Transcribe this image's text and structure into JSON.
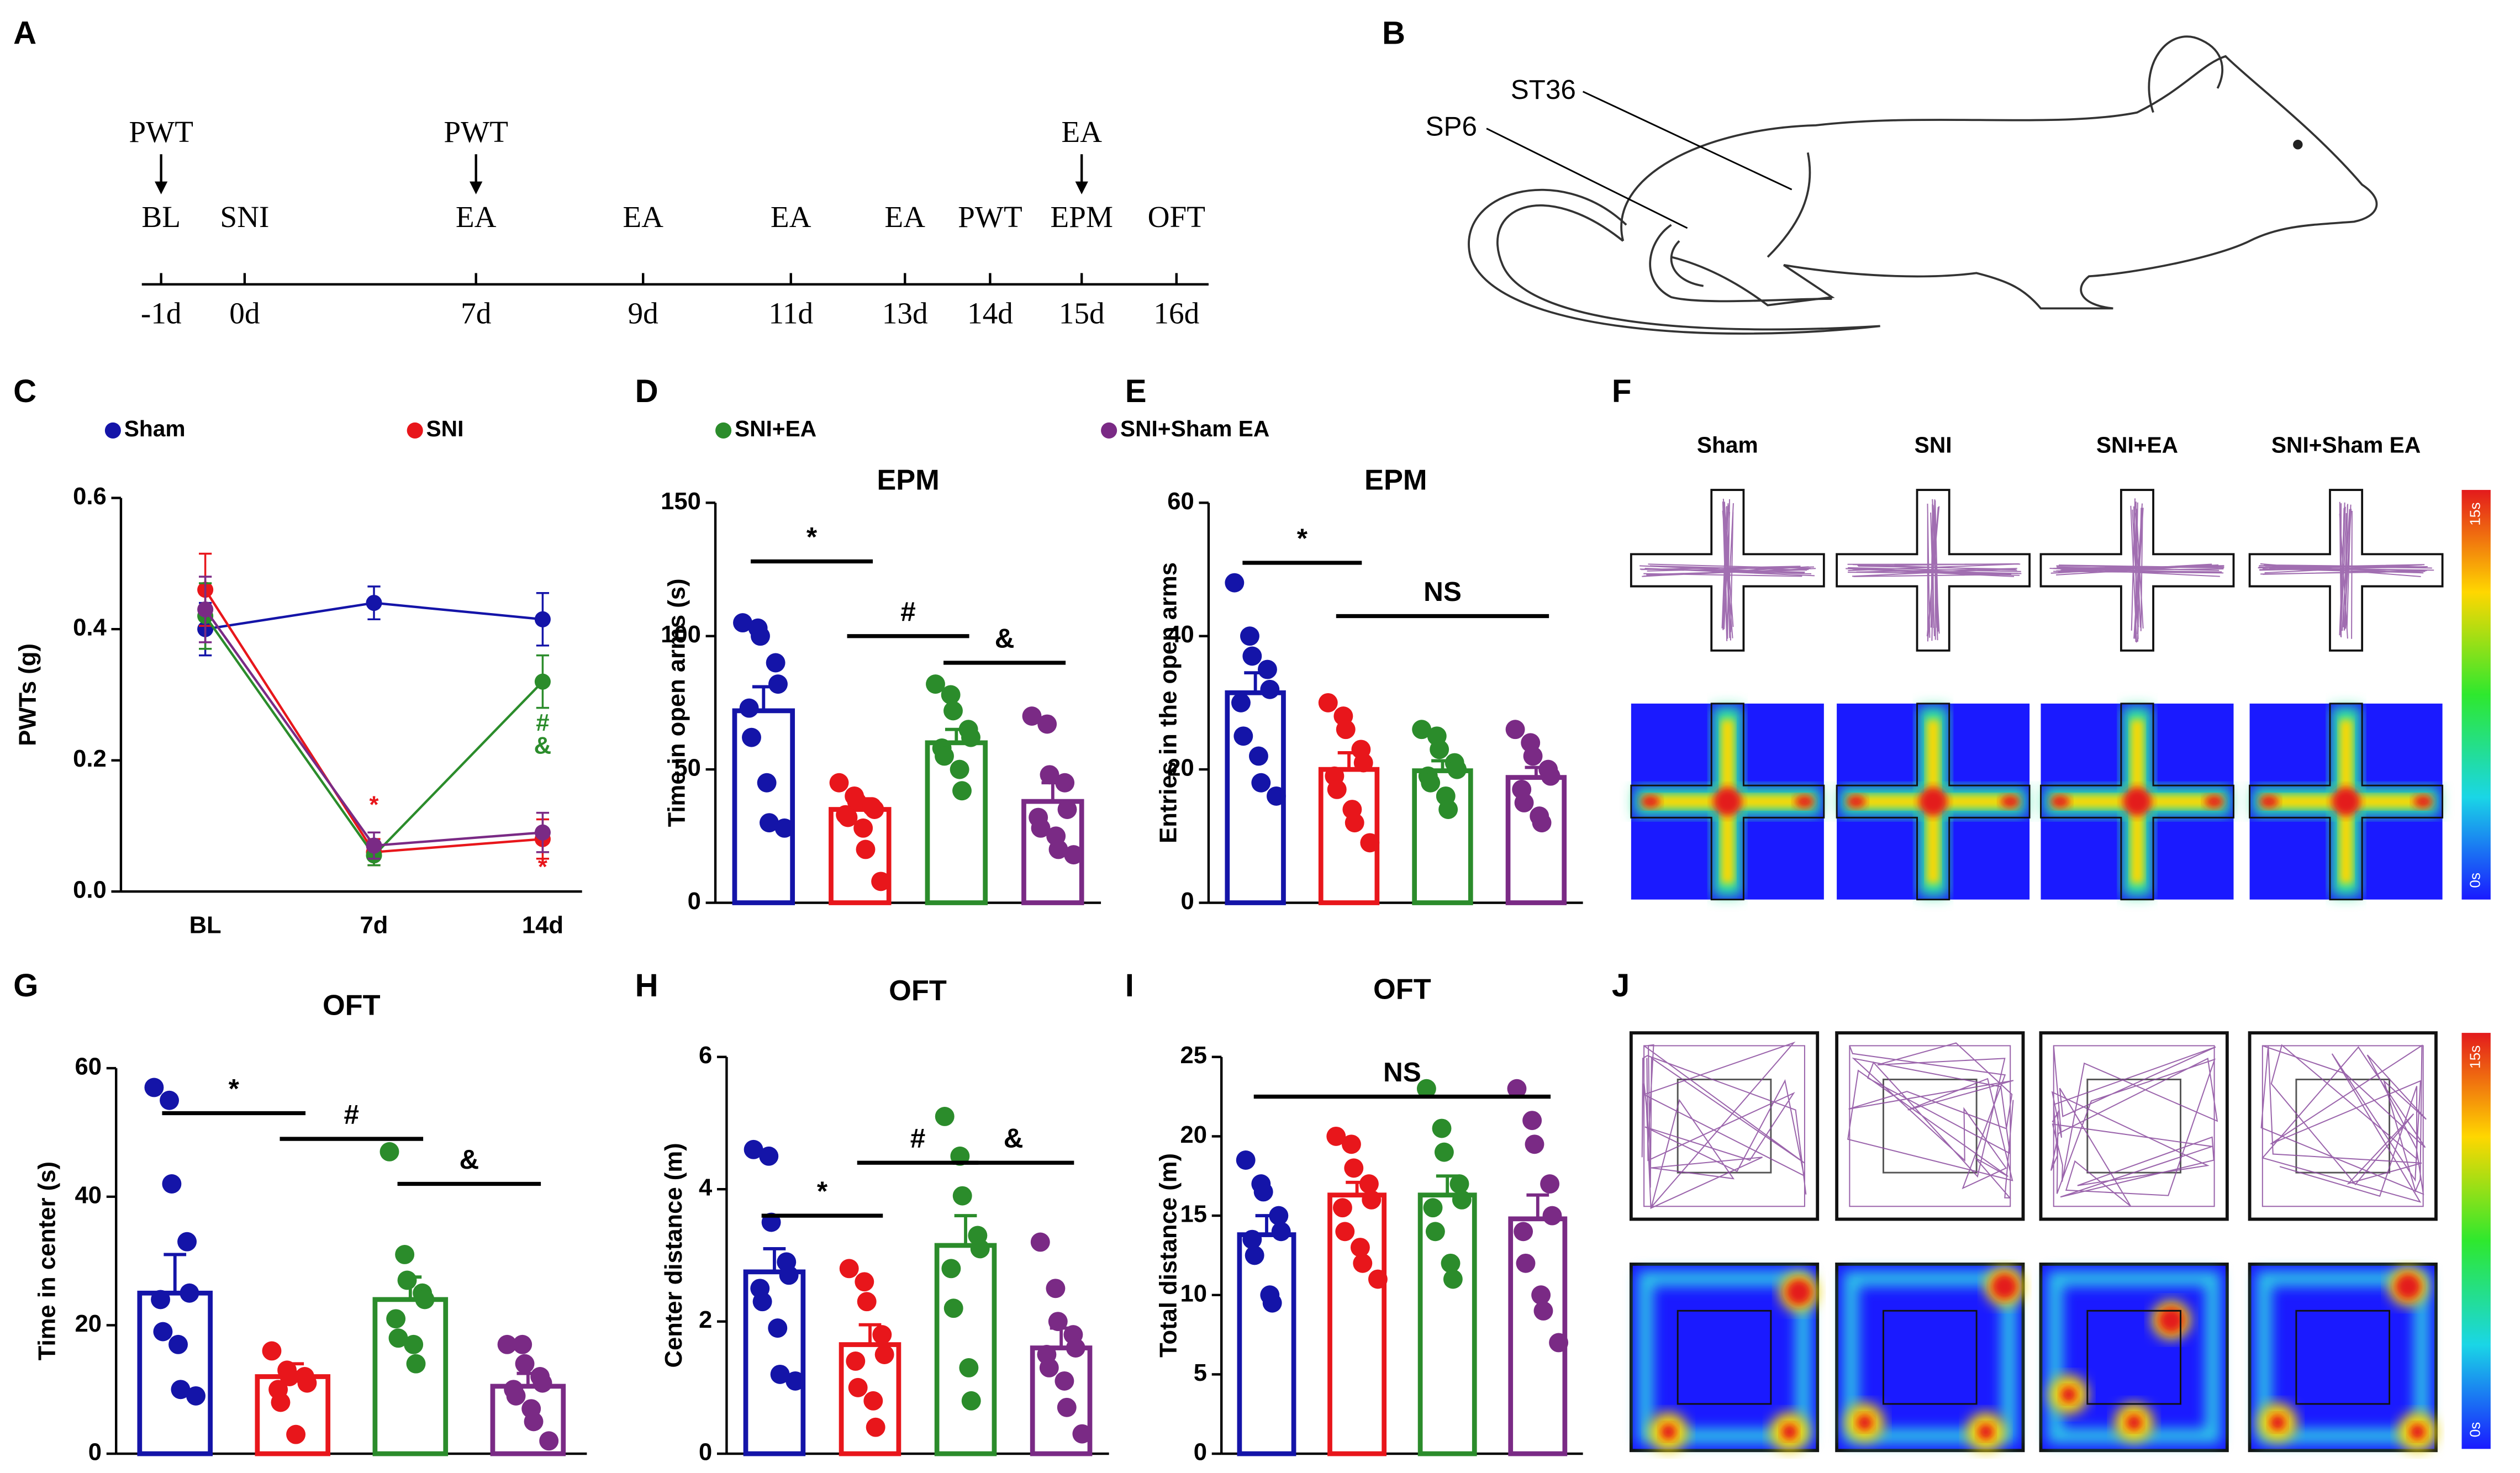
{
  "panel_labels": [
    "A",
    "B",
    "C",
    "D",
    "E",
    "F",
    "G",
    "H",
    "I",
    "J"
  ],
  "timeline": {
    "events": [
      {
        "top": "PWT",
        "label": "BL",
        "day": "-1d"
      },
      {
        "label": "SNI",
        "day": "0d"
      },
      {
        "top": "PWT",
        "label": "EA",
        "day": "7d"
      },
      {
        "label": "EA",
        "day": "9d"
      },
      {
        "label": "EA",
        "day": "11d"
      },
      {
        "label": "EA",
        "day": "13d"
      },
      {
        "label": "PWT",
        "day": "14d"
      },
      {
        "top": "EA",
        "label": "EPM",
        "day": "15d"
      },
      {
        "label": "OFT",
        "day": "16d"
      }
    ]
  },
  "mouse_labels": [
    "ST36",
    "SP6"
  ],
  "tracking_f": {
    "groups": [
      "Sham",
      "SNI",
      "SNI+EA",
      "SNI+Sham EA"
    ],
    "colorbar": [
      "15s",
      "0s"
    ]
  },
  "tracking_j": {
    "colorbar": [
      "15s",
      "0s"
    ]
  },
  "chart_data": [
    {
      "type": "line",
      "y_label": "PWTs (g)",
      "categories": [
        "BL",
        "7d",
        "14d"
      ],
      "ylim": [
        0,
        0.6
      ],
      "yticks": [
        {
          "value": 0,
          "label": "0.0"
        },
        0.2,
        0.4,
        0.6
      ],
      "series": [
        {
          "name": "Sham",
          "color": "#1414a8",
          "values": [
            0.4,
            0.44,
            0.415
          ],
          "errors": [
            0.04,
            0.025,
            0.04
          ]
        },
        {
          "name": "SNI",
          "color": "#e8161b",
          "values": [
            0.46,
            0.06,
            0.08
          ],
          "errors": [
            0.055,
            0.02,
            0.03
          ]
        },
        {
          "name": "SNI+EA",
          "color": "#2b8c2b",
          "values": [
            0.42,
            0.055,
            0.32
          ],
          "errors": [
            0.05,
            0.015,
            0.04
          ]
        },
        {
          "name": "SNI+Sham EA",
          "color": "#7a2a85",
          "values": [
            0.43,
            0.07,
            0.09
          ],
          "errors": [
            0.05,
            0.02,
            0.03
          ]
        }
      ],
      "annotations": [
        {
          "text": "*",
          "category": 1,
          "y": 0.13,
          "color": "#e8161b"
        },
        {
          "text": "#",
          "category": 2,
          "y": 0.255,
          "color": "#2b8c2b"
        },
        {
          "text": "&",
          "category": 2,
          "y": 0.22,
          "color": "#2b8c2b"
        },
        {
          "text": "*",
          "category": 2,
          "y": 0.035,
          "color": "#e8161b"
        }
      ]
    },
    {
      "type": "bar",
      "title": "EPM",
      "y_label": "Time in open arms (s)",
      "ylim": [
        0,
        150
      ],
      "yticks": [
        0,
        50,
        100,
        150
      ],
      "colors": [
        "#1414a8",
        "#e8161b",
        "#2b8c2b",
        "#7a2a85"
      ],
      "values": [
        72,
        35,
        60,
        38
      ],
      "errors": [
        9,
        4,
        5,
        7
      ],
      "points": [
        [
          105,
          103,
          100,
          90,
          82,
          73,
          62,
          45,
          30,
          28
        ],
        [
          45,
          40,
          38,
          36,
          35,
          33,
          32,
          28,
          20,
          8
        ],
        [
          82,
          78,
          72,
          65,
          62,
          58,
          55,
          50,
          42
        ],
        [
          70,
          67,
          48,
          45,
          35,
          32,
          28,
          25,
          20,
          18
        ]
      ],
      "annotations": [
        {
          "text": "*",
          "from": 0,
          "to": 1,
          "y": 128
        },
        {
          "text": "#",
          "from": 1,
          "to": 2,
          "y": 100
        },
        {
          "text": "&",
          "from": 2,
          "to": 3,
          "y": 90
        }
      ]
    },
    {
      "type": "bar",
      "title": "EPM",
      "y_label": "Entries in the open arms",
      "ylim": [
        0,
        60
      ],
      "yticks": [
        0,
        20,
        40,
        60
      ],
      "colors": [
        "#1414a8",
        "#e8161b",
        "#2b8c2b",
        "#7a2a85"
      ],
      "values": [
        31.5,
        20,
        19.8,
        18.8
      ],
      "errors": [
        3,
        2.5,
        1.5,
        1.5
      ],
      "points": [
        [
          48,
          40,
          37,
          35,
          32,
          30,
          25,
          22,
          18,
          16
        ],
        [
          30,
          28,
          26,
          23,
          21,
          19,
          17,
          14,
          12,
          9
        ],
        [
          26,
          25,
          23,
          21,
          20,
          19,
          18,
          16,
          14
        ],
        [
          26,
          24,
          22,
          20,
          19,
          17,
          15,
          13,
          12
        ]
      ],
      "annotations": [
        {
          "text": "*",
          "from": 0,
          "to": 1,
          "y": 51
        },
        {
          "text": "NS",
          "from": 1,
          "to": 3,
          "y": 43
        }
      ]
    },
    {
      "type": "bar",
      "title": "OFT",
      "y_label": "Time in center (s)",
      "ylim": [
        0,
        60
      ],
      "yticks": [
        0,
        20,
        40,
        60
      ],
      "colors": [
        "#1414a8",
        "#e8161b",
        "#2b8c2b",
        "#7a2a85"
      ],
      "values": [
        25,
        12,
        24,
        10.5
      ],
      "errors": [
        6,
        2,
        3.5,
        2
      ],
      "points": [
        [
          57,
          55,
          42,
          33,
          25,
          24,
          19,
          17,
          10,
          9
        ],
        [
          16,
          13,
          12,
          12,
          11,
          10,
          8,
          3
        ],
        [
          47,
          31,
          27,
          25,
          24,
          21,
          18,
          17,
          14
        ],
        [
          17,
          17,
          14,
          12,
          11,
          10,
          9,
          7,
          5,
          2
        ]
      ],
      "annotations": [
        {
          "text": "*",
          "from": 0,
          "to": 1,
          "y": 53
        },
        {
          "text": "#",
          "from": 1,
          "to": 2,
          "y": 49
        },
        {
          "text": "&",
          "from": 2,
          "to": 3,
          "y": 42
        }
      ]
    },
    {
      "type": "bar",
      "title": "OFT",
      "y_label": "Center distance (m)",
      "ylim": [
        0,
        6
      ],
      "yticks": [
        0,
        2,
        4,
        6
      ],
      "colors": [
        "#1414a8",
        "#e8161b",
        "#2b8c2b",
        "#7a2a85"
      ],
      "values": [
        2.75,
        1.65,
        3.15,
        1.6
      ],
      "errors": [
        0.35,
        0.3,
        0.45,
        0.3
      ],
      "points": [
        [
          4.6,
          4.5,
          3.5,
          2.9,
          2.7,
          2.5,
          2.3,
          1.9,
          1.2,
          1.1
        ],
        [
          2.8,
          2.6,
          2.3,
          1.8,
          1.5,
          1.4,
          1.0,
          0.8,
          0.4
        ],
        [
          5.1,
          4.5,
          3.9,
          3.3,
          3.1,
          2.8,
          2.2,
          1.3,
          0.8
        ],
        [
          3.2,
          2.5,
          2.0,
          1.8,
          1.6,
          1.5,
          1.3,
          1.1,
          0.7,
          0.3
        ]
      ],
      "annotations": [
        {
          "text": "*",
          "from": 0,
          "to": 1,
          "y": 3.6
        },
        {
          "text": "#",
          "from": 1,
          "to": 2,
          "y": 4.4
        },
        {
          "text": "&",
          "from": 2,
          "to": 3,
          "y": 4.4
        }
      ]
    },
    {
      "type": "bar",
      "title": "OFT",
      "y_label": "Total distance (m)",
      "ylim": [
        0,
        25
      ],
      "yticks": [
        0,
        5,
        10,
        15,
        20,
        25
      ],
      "colors": [
        "#1414a8",
        "#e8161b",
        "#2b8c2b",
        "#7a2a85"
      ],
      "values": [
        13.8,
        16.3,
        16.3,
        14.8
      ],
      "errors": [
        1.2,
        0.8,
        1.2,
        1.5
      ],
      "points": [
        [
          18.5,
          17,
          16.5,
          15,
          14,
          13.5,
          12.5,
          10,
          9.5
        ],
        [
          20,
          19.5,
          18,
          17,
          16,
          15.5,
          14,
          13,
          12,
          11
        ],
        [
          23,
          20.5,
          19,
          17,
          16,
          15.5,
          14,
          12,
          11
        ],
        [
          23,
          21,
          19.5,
          17,
          15,
          14,
          12,
          10,
          9,
          7
        ]
      ],
      "annotations": [
        {
          "text": "NS",
          "from": 0,
          "to": 3,
          "y": 22.5
        }
      ]
    }
  ]
}
